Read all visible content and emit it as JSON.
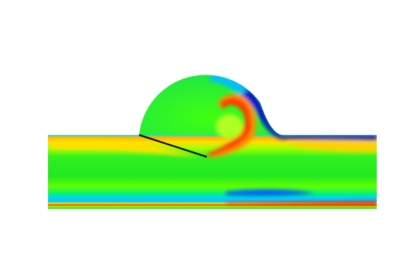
{
  "figure": {
    "colormap": [
      "#0000c8",
      "#0080ff",
      "#00e0ff",
      "#00f0a0",
      "#00e000",
      "#40ff00",
      "#a0ff00",
      "#ffe000",
      "#ff8000",
      "#ff2000"
    ],
    "colors": {
      "background": "#ffffff",
      "base_field": "#1ee81e",
      "low": "#0010c0",
      "mid_low": "#00d8ff",
      "mid_high": "#ffc000",
      "high": "#ff2a00",
      "plate": "#111111"
    }
  }
}
